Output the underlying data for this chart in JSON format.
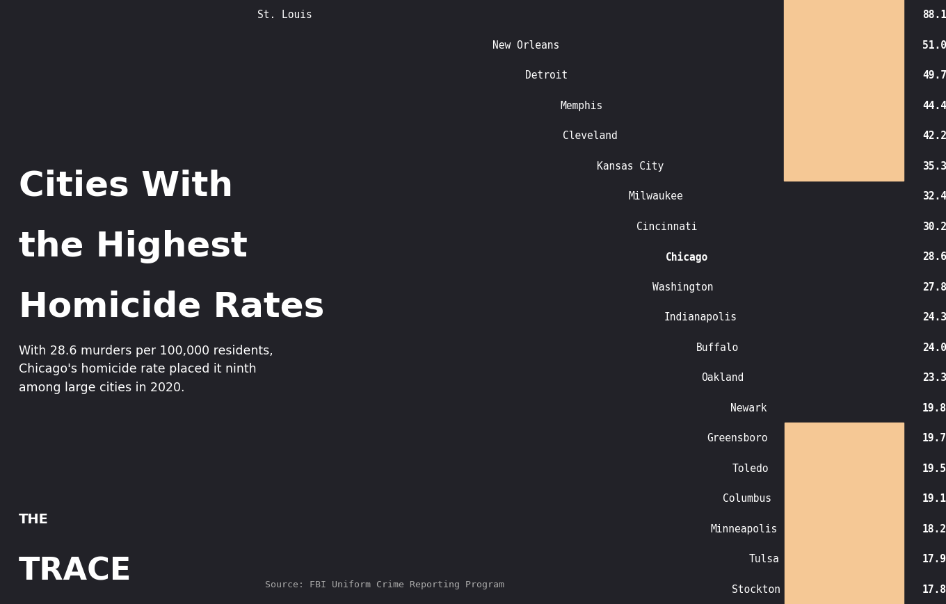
{
  "cities": [
    "St. Louis",
    "New Orleans",
    "Detroit",
    "Memphis",
    "Cleveland",
    "Kansas City",
    "Milwaukee",
    "Cincinnati",
    "Chicago",
    "Washington",
    "Indianapolis",
    "Buffalo",
    "Oakland",
    "Newark",
    "Greensboro",
    "Toledo",
    "Columbus",
    "Minneapolis",
    "Tulsa",
    "Stockton"
  ],
  "values": [
    88.1,
    51.0,
    49.7,
    44.4,
    42.2,
    35.3,
    32.4,
    30.2,
    28.6,
    27.8,
    24.3,
    24.0,
    23.3,
    19.8,
    19.7,
    19.5,
    19.1,
    18.2,
    17.9,
    17.8
  ],
  "bar_color_default": "#F5C895",
  "bar_color_chicago": "#A0522D",
  "background_color": "#222228",
  "text_color": "#ffffff",
  "value_color": "#ffffff",
  "chicago_index": 8,
  "title_line1": "Cities With",
  "title_line2": "the Highest",
  "title_line3": "Homicide Rates",
  "subtitle": "With 28.6 murders per 100,000 residents,\nChicago's homicide rate placed it ninth\namong large cities in 2020.",
  "source": "Source: FBI Uniform Crime Reporting Program",
  "logo_line1": "THE",
  "logo_line2": "TRACE"
}
